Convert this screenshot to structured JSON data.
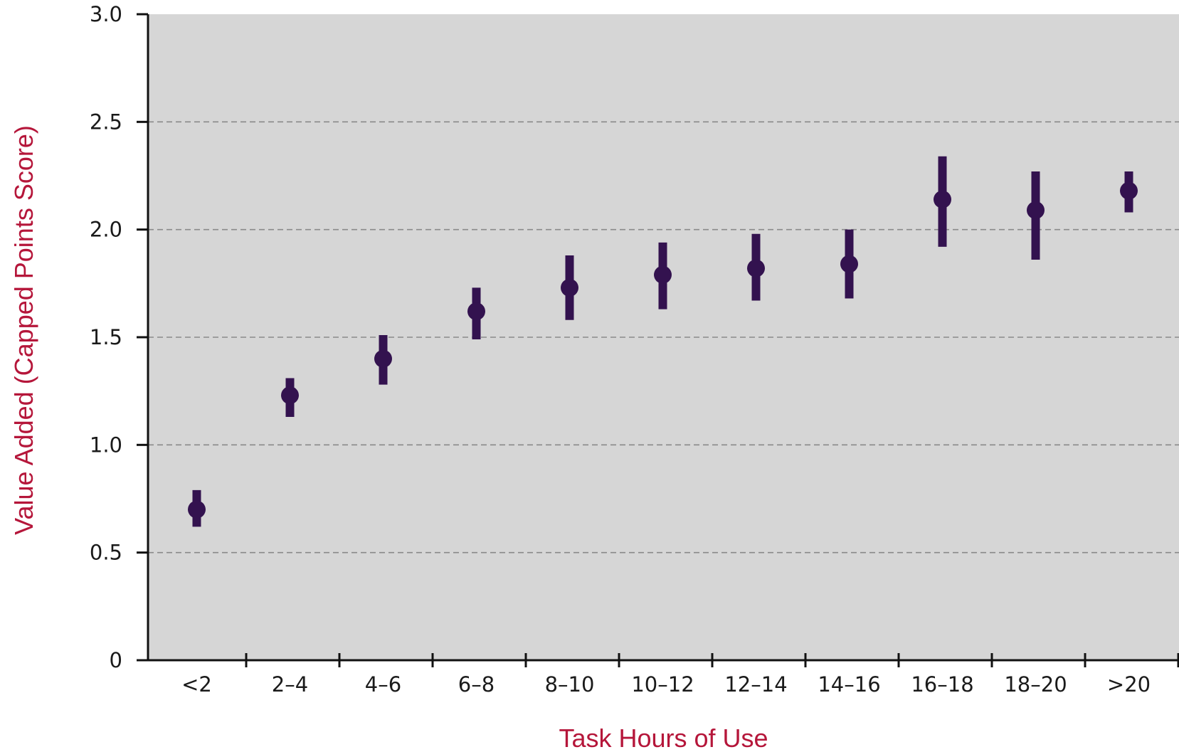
{
  "chart_data": {
    "type": "scatter",
    "subtype": "point-with-error-bars",
    "xlabel": "Task Hours of Use",
    "ylabel": "Value Added (Capped Points Score)",
    "categories": [
      "<2",
      "2–4",
      "4–6",
      "6–8",
      "8–10",
      "10–12",
      "12–14",
      "14–16",
      "16–18",
      "18–20",
      ">20"
    ],
    "values": [
      0.7,
      1.23,
      1.4,
      1.62,
      1.73,
      1.79,
      1.82,
      1.84,
      2.14,
      2.09,
      2.18
    ],
    "error_low": [
      0.62,
      1.13,
      1.28,
      1.49,
      1.58,
      1.63,
      1.67,
      1.68,
      1.92,
      1.86,
      2.08
    ],
    "error_high": [
      0.79,
      1.31,
      1.51,
      1.73,
      1.88,
      1.94,
      1.98,
      2.0,
      2.34,
      2.27,
      2.27
    ],
    "ylim": [
      0,
      3.0
    ],
    "y_ticks": [
      "0",
      "0.5",
      "1.0",
      "1.5",
      "2.0",
      "2.5",
      "3.0"
    ],
    "grid": "horizontal dashed",
    "colors": {
      "plot_background": "#d6d6d6",
      "marker": "#33124f",
      "axis_title": "#b5163a",
      "gridline": "#8a8a8a"
    }
  }
}
